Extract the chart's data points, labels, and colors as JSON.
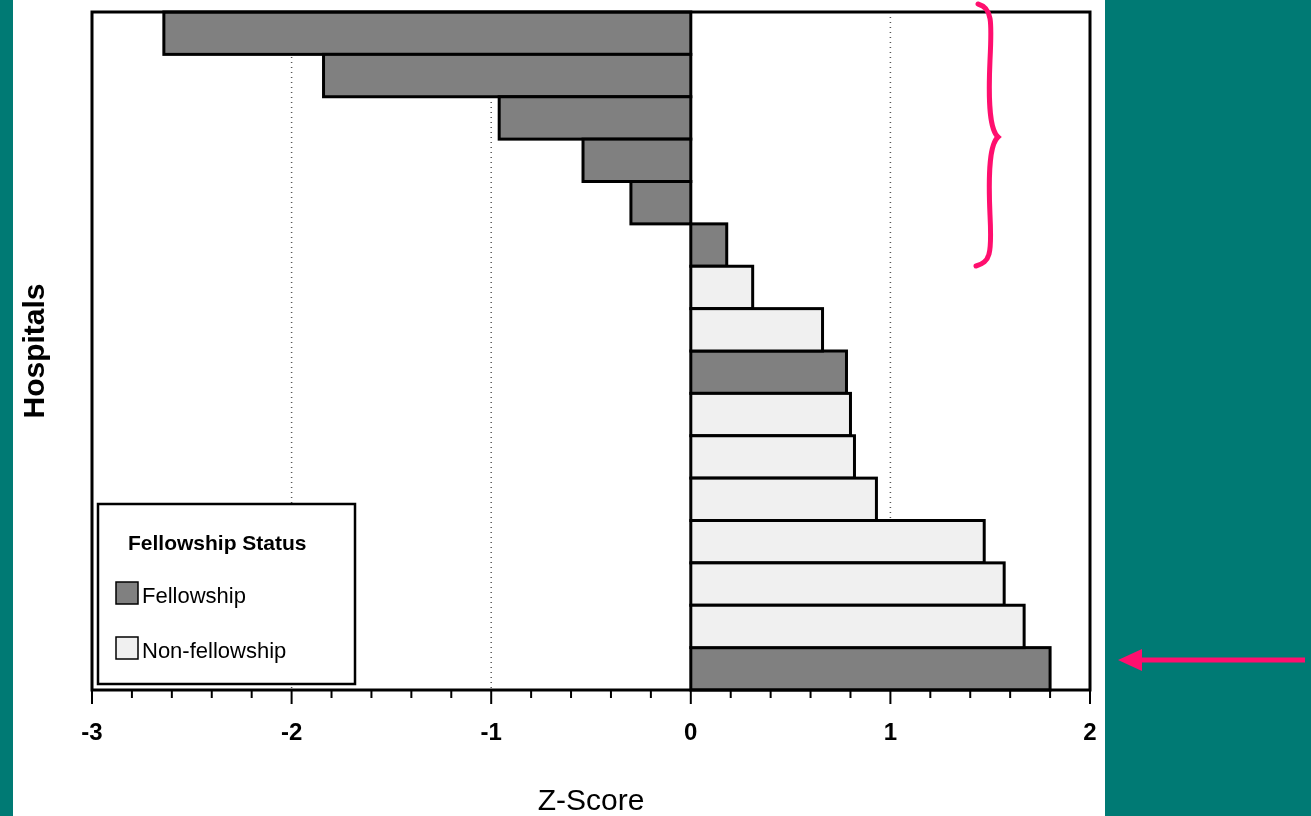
{
  "chart_data": {
    "type": "bar",
    "orientation": "horizontal",
    "xlabel": "Z-Score",
    "ylabel": "Hospitals",
    "legend_title": "Fellowship Status",
    "legend": "bottom left",
    "grid": "x",
    "line_style": "dotted",
    "categories": [
      null,
      null,
      null,
      null,
      null,
      null,
      null,
      null,
      null,
      null,
      null,
      null,
      null,
      null,
      null,
      null
    ],
    "xlim": [
      -3,
      2
    ],
    "xticks": [
      -3,
      {
        "value": -2.8,
        "label": null
      },
      {
        "value": -2.6,
        "label": null
      },
      {
        "value": -2.4,
        "label": null
      },
      {
        "value": -2.2,
        "label": null
      },
      -2,
      {
        "value": -1.8,
        "label": null
      },
      {
        "value": -1.6,
        "label": null
      },
      {
        "value": -1.4,
        "label": null
      },
      {
        "value": -1.2,
        "label": null
      },
      -1,
      {
        "value": -0.8,
        "label": null
      },
      {
        "value": -0.6,
        "label": null
      },
      {
        "value": -0.4,
        "label": null
      },
      {
        "value": -0.2,
        "label": null
      },
      0,
      {
        "value": 0.2,
        "label": null
      },
      {
        "value": 0.4,
        "label": null
      },
      {
        "value": 0.6,
        "label": null
      },
      {
        "value": 0.8,
        "label": null
      },
      1,
      {
        "value": 1.2,
        "label": null
      },
      {
        "value": 1.4,
        "label": null
      },
      {
        "value": 1.6,
        "label": null
      },
      {
        "value": 1.8,
        "label": null
      },
      2
    ],
    "series": [
      {
        "name": "Fellowship",
        "color": "#808080",
        "values": [
          -2.64,
          -1.84,
          -0.96,
          -0.54,
          -0.3,
          0.18,
          null,
          null,
          0.78,
          null,
          null,
          null,
          null,
          null,
          null,
          1.8
        ]
      },
      {
        "name": "Non-fellowship",
        "color": "#f0f0f0",
        "values": [
          null,
          null,
          null,
          null,
          null,
          null,
          0.31,
          0.66,
          null,
          0.8,
          0.82,
          0.93,
          1.47,
          1.57,
          1.67,
          null
        ]
      }
    ]
  }
}
